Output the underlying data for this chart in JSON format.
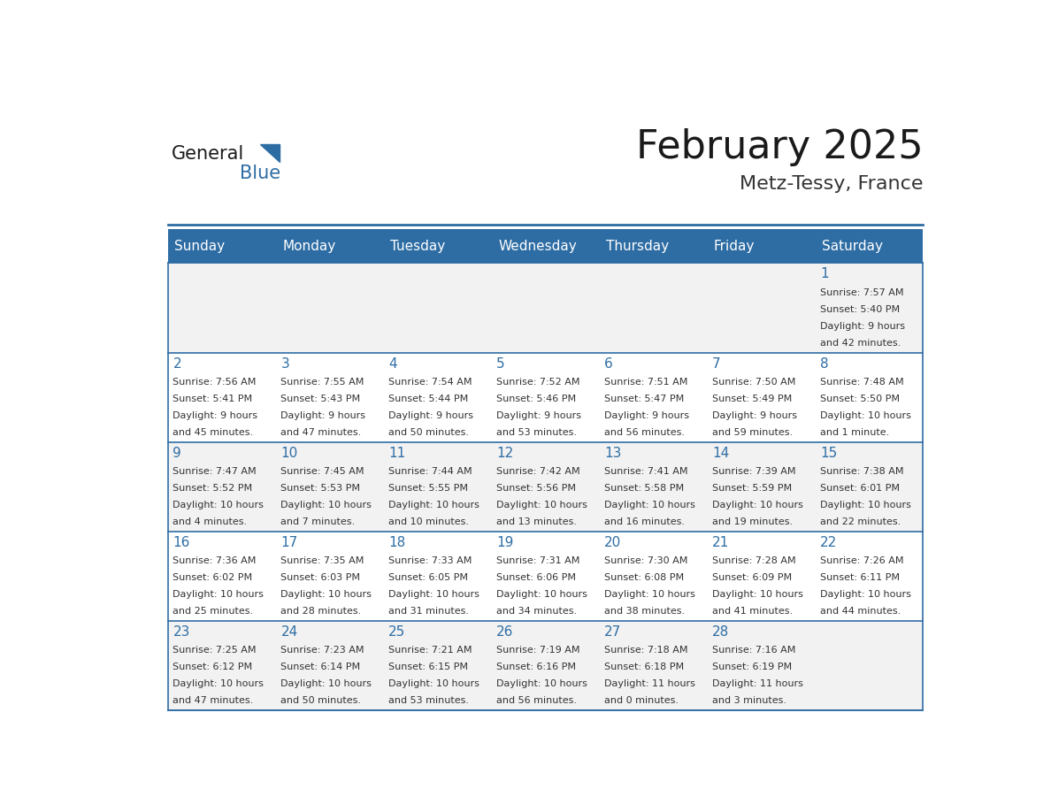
{
  "title": "February 2025",
  "subtitle": "Metz-Tessy, France",
  "header_bg": "#2E6DA4",
  "header_text": "#FFFFFF",
  "cell_bg_light": "#F2F2F2",
  "cell_bg_white": "#FFFFFF",
  "border_color": "#2E6DA4",
  "day_headers": [
    "Sunday",
    "Monday",
    "Tuesday",
    "Wednesday",
    "Thursday",
    "Friday",
    "Saturday"
  ],
  "title_color": "#1a1a1a",
  "subtitle_color": "#333333",
  "day_num_color": "#2E6DA4",
  "cell_text_color": "#333333",
  "logo_general_color": "#1a1a1a",
  "logo_blue_color": "#2E6DA4",
  "calendar_data": [
    [
      null,
      null,
      null,
      null,
      null,
      null,
      {
        "day": 1,
        "sunrise": "7:57 AM",
        "sunset": "5:40 PM",
        "daylight": "9 hours\nand 42 minutes."
      }
    ],
    [
      {
        "day": 2,
        "sunrise": "7:56 AM",
        "sunset": "5:41 PM",
        "daylight": "9 hours\nand 45 minutes."
      },
      {
        "day": 3,
        "sunrise": "7:55 AM",
        "sunset": "5:43 PM",
        "daylight": "9 hours\nand 47 minutes."
      },
      {
        "day": 4,
        "sunrise": "7:54 AM",
        "sunset": "5:44 PM",
        "daylight": "9 hours\nand 50 minutes."
      },
      {
        "day": 5,
        "sunrise": "7:52 AM",
        "sunset": "5:46 PM",
        "daylight": "9 hours\nand 53 minutes."
      },
      {
        "day": 6,
        "sunrise": "7:51 AM",
        "sunset": "5:47 PM",
        "daylight": "9 hours\nand 56 minutes."
      },
      {
        "day": 7,
        "sunrise": "7:50 AM",
        "sunset": "5:49 PM",
        "daylight": "9 hours\nand 59 minutes."
      },
      {
        "day": 8,
        "sunrise": "7:48 AM",
        "sunset": "5:50 PM",
        "daylight": "10 hours\nand 1 minute."
      }
    ],
    [
      {
        "day": 9,
        "sunrise": "7:47 AM",
        "sunset": "5:52 PM",
        "daylight": "10 hours\nand 4 minutes."
      },
      {
        "day": 10,
        "sunrise": "7:45 AM",
        "sunset": "5:53 PM",
        "daylight": "10 hours\nand 7 minutes."
      },
      {
        "day": 11,
        "sunrise": "7:44 AM",
        "sunset": "5:55 PM",
        "daylight": "10 hours\nand 10 minutes."
      },
      {
        "day": 12,
        "sunrise": "7:42 AM",
        "sunset": "5:56 PM",
        "daylight": "10 hours\nand 13 minutes."
      },
      {
        "day": 13,
        "sunrise": "7:41 AM",
        "sunset": "5:58 PM",
        "daylight": "10 hours\nand 16 minutes."
      },
      {
        "day": 14,
        "sunrise": "7:39 AM",
        "sunset": "5:59 PM",
        "daylight": "10 hours\nand 19 minutes."
      },
      {
        "day": 15,
        "sunrise": "7:38 AM",
        "sunset": "6:01 PM",
        "daylight": "10 hours\nand 22 minutes."
      }
    ],
    [
      {
        "day": 16,
        "sunrise": "7:36 AM",
        "sunset": "6:02 PM",
        "daylight": "10 hours\nand 25 minutes."
      },
      {
        "day": 17,
        "sunrise": "7:35 AM",
        "sunset": "6:03 PM",
        "daylight": "10 hours\nand 28 minutes."
      },
      {
        "day": 18,
        "sunrise": "7:33 AM",
        "sunset": "6:05 PM",
        "daylight": "10 hours\nand 31 minutes."
      },
      {
        "day": 19,
        "sunrise": "7:31 AM",
        "sunset": "6:06 PM",
        "daylight": "10 hours\nand 34 minutes."
      },
      {
        "day": 20,
        "sunrise": "7:30 AM",
        "sunset": "6:08 PM",
        "daylight": "10 hours\nand 38 minutes."
      },
      {
        "day": 21,
        "sunrise": "7:28 AM",
        "sunset": "6:09 PM",
        "daylight": "10 hours\nand 41 minutes."
      },
      {
        "day": 22,
        "sunrise": "7:26 AM",
        "sunset": "6:11 PM",
        "daylight": "10 hours\nand 44 minutes."
      }
    ],
    [
      {
        "day": 23,
        "sunrise": "7:25 AM",
        "sunset": "6:12 PM",
        "daylight": "10 hours\nand 47 minutes."
      },
      {
        "day": 24,
        "sunrise": "7:23 AM",
        "sunset": "6:14 PM",
        "daylight": "10 hours\nand 50 minutes."
      },
      {
        "day": 25,
        "sunrise": "7:21 AM",
        "sunset": "6:15 PM",
        "daylight": "10 hours\nand 53 minutes."
      },
      {
        "day": 26,
        "sunrise": "7:19 AM",
        "sunset": "6:16 PM",
        "daylight": "10 hours\nand 56 minutes."
      },
      {
        "day": 27,
        "sunrise": "7:18 AM",
        "sunset": "6:18 PM",
        "daylight": "11 hours\nand 0 minutes."
      },
      {
        "day": 28,
        "sunrise": "7:16 AM",
        "sunset": "6:19 PM",
        "daylight": "11 hours\nand 3 minutes."
      },
      null
    ]
  ]
}
